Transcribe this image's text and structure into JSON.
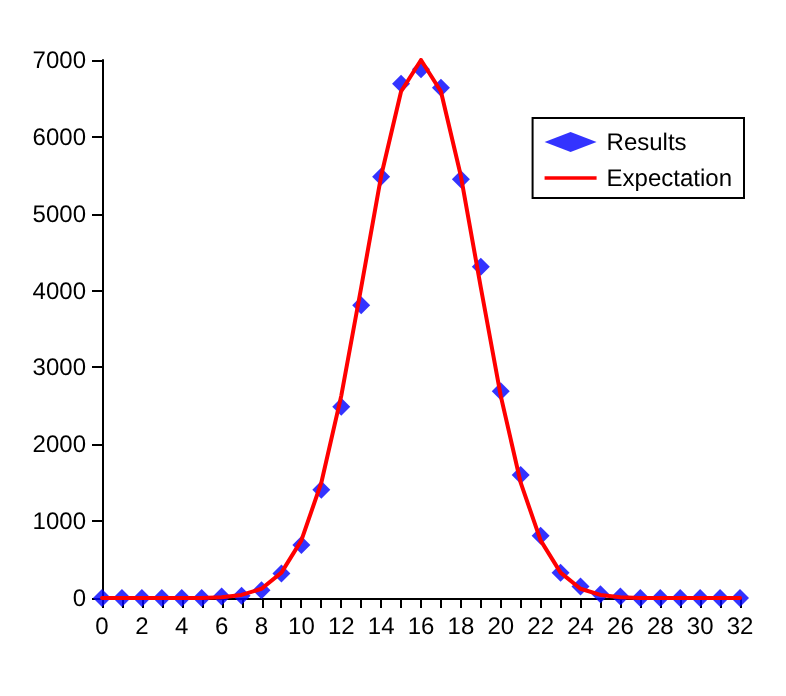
{
  "chart_data": {
    "type": "scatter",
    "x": [
      0,
      1,
      2,
      3,
      4,
      5,
      6,
      7,
      8,
      9,
      10,
      11,
      12,
      13,
      14,
      15,
      16,
      17,
      18,
      19,
      20,
      21,
      22,
      23,
      24,
      25,
      26,
      27,
      28,
      29,
      30,
      31,
      32
    ],
    "series": [
      {
        "name": "Results",
        "color": "#0000ff",
        "marker": "diamond",
        "values": [
          0,
          0,
          0,
          0,
          0,
          0,
          20,
          30,
          100,
          320,
          690,
          1410,
          2490,
          3810,
          5480,
          6690,
          6880,
          6640,
          5450,
          4310,
          2690,
          1600,
          810,
          330,
          150,
          50,
          20,
          0,
          0,
          0,
          0,
          0,
          0
        ]
      },
      {
        "name": "Expectation",
        "type": "line",
        "color": "#ff0000",
        "marker": "none",
        "line_style": "solid",
        "values": [
          0,
          0,
          0,
          0,
          0,
          0,
          10,
          40,
          120,
          330,
          750,
          1500,
          2630,
          4040,
          5490,
          6590,
          7000,
          6590,
          5490,
          4040,
          2630,
          1500,
          750,
          330,
          120,
          40,
          10,
          0,
          0,
          0,
          0,
          0,
          0
        ]
      }
    ],
    "xlim": [
      0,
      32
    ],
    "xticks": [
      0,
      {
        "value": 1,
        "label": null
      },
      2,
      {
        "value": 3,
        "label": null
      },
      4,
      {
        "value": 5,
        "label": null
      },
      6,
      {
        "value": 7,
        "label": null
      },
      8,
      {
        "value": 9,
        "label": null
      },
      10,
      {
        "value": 11,
        "label": null
      },
      12,
      {
        "value": 13,
        "label": null
      },
      14,
      {
        "value": 15,
        "label": null
      },
      16,
      {
        "value": 17,
        "label": null
      },
      18,
      {
        "value": 19,
        "label": null
      },
      20,
      {
        "value": 21,
        "label": null
      },
      22,
      {
        "value": 23,
        "label": null
      },
      24,
      {
        "value": 25,
        "label": null
      },
      26,
      {
        "value": 27,
        "label": null
      },
      28,
      {
        "value": 29,
        "label": null
      },
      30,
      {
        "value": 31,
        "label": null
      },
      32
    ],
    "ylim": [
      0,
      7000
    ],
    "yticks": [
      0,
      1000,
      2000,
      3000,
      4000,
      5000,
      6000,
      7000
    ],
    "grid": false,
    "legend": "top right"
  }
}
